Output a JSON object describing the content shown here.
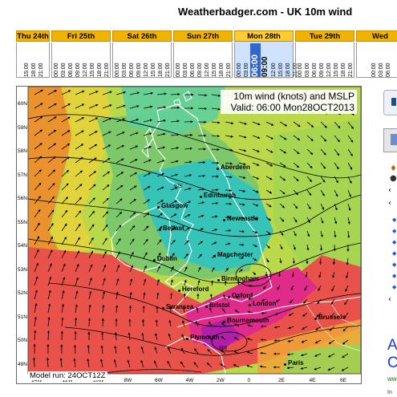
{
  "header": {
    "title": "Weatherbadger.com - UK 10m wind"
  },
  "timeline": {
    "days": [
      {
        "label": "Thu 24th",
        "hours": [
          "15:00",
          "18:00",
          "21:00"
        ]
      },
      {
        "label": "Fri 25th",
        "hours": [
          "00:00",
          "03:00",
          "06:00",
          "09:00",
          "12:00",
          "15:00",
          "18:00",
          "21:00"
        ]
      },
      {
        "label": "Sat 26th",
        "hours": [
          "00:00",
          "03:00",
          "06:00",
          "09:00",
          "12:00",
          "15:00",
          "18:00",
          "21:00"
        ]
      },
      {
        "label": "Sun 27th",
        "hours": [
          "00:00",
          "03:00",
          "06:00",
          "09:00",
          "12:00",
          "15:00",
          "18:00",
          "21:00"
        ]
      },
      {
        "label": "Mon 28th",
        "hours": [
          "00:00",
          "03:00",
          "06:00",
          "09:00",
          "12:00",
          "15:00",
          "18:00",
          "21:00"
        ]
      },
      {
        "label": "Tue 29th",
        "hours": [
          "00:00",
          "03:00",
          "06:00",
          "09:00",
          "12:00",
          "15:00",
          "18:00",
          "21:00"
        ]
      },
      {
        "label": "Wed",
        "hours": [
          "00:00",
          "03:00",
          "06:00"
        ]
      }
    ],
    "selected_day": "Mon 28th",
    "selected_hour": "06:00",
    "active_color": "#3366cc",
    "header_color": "#f0b400"
  },
  "map": {
    "title_line1": "10m wind (knots) and MSLP",
    "title_line2": "Valid: 06:00 Mon28OCT2013",
    "model_run": "Model run: 24OCT12Z",
    "lat_labels": [
      "60N",
      "59N",
      "58N",
      "57N",
      "56N",
      "55N",
      "54N",
      "53N",
      "52N",
      "51N",
      "50N",
      "49N"
    ],
    "lon_labels": [
      "14W",
      "12W",
      "10W",
      "8W",
      "6W",
      "4W",
      "2W",
      "0",
      "2E",
      "4E",
      "6E"
    ],
    "cities": [
      "Aberdeen",
      "Edinburgh",
      "Glasgow",
      "Newcastle",
      "Belfast",
      "Dublin",
      "Manchester",
      "Birmingham",
      "Hereford",
      "Oxford",
      "Swansea",
      "Bristol",
      "London",
      "Bournemouth",
      "Plymouth",
      "Brussels",
      "Paris"
    ],
    "isobar_labels": [
      "976",
      "968",
      "976"
    ]
  },
  "sidebar_partial": {
    "ad_text": "A C",
    "ad_url": "ww",
    "ad_small": "In"
  }
}
